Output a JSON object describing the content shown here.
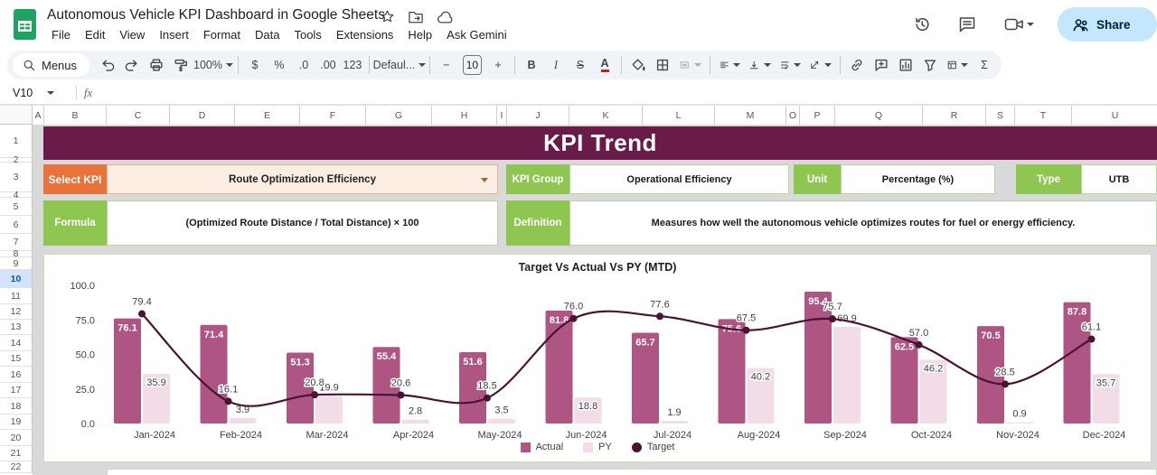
{
  "titlebar": {
    "doc_title": "Autonomous Vehicle KPI Dashboard in Google Sheets",
    "menus": [
      "File",
      "Edit",
      "View",
      "Insert",
      "Format",
      "Data",
      "Tools",
      "Extensions",
      "Help",
      "Ask Gemini"
    ],
    "title_icons": [
      "star-icon",
      "move-folder-icon",
      "cloud-status-icon"
    ],
    "right_icons": [
      "version-history-icon",
      "comments-icon",
      "video-call-icon"
    ],
    "share_label": "Share"
  },
  "toolbar": {
    "items": [
      {
        "name": "menus-search",
        "icon": "search",
        "text": "Menus",
        "pill": true
      },
      {
        "name": "undo",
        "icon": "undo"
      },
      {
        "name": "redo",
        "icon": "redo"
      },
      {
        "name": "print",
        "icon": "print"
      },
      {
        "name": "paint-format",
        "icon": "paint-roller"
      },
      {
        "name": "zoom",
        "text": "100%",
        "caret": true
      },
      {
        "sep": true
      },
      {
        "name": "format-currency",
        "text": "$"
      },
      {
        "name": "format-percent",
        "text": "%"
      },
      {
        "name": "decrease-decimal",
        "text": ".0"
      },
      {
        "name": "increase-decimal",
        "text": ".00"
      },
      {
        "name": "more-formats",
        "text": "123"
      },
      {
        "sep": true
      },
      {
        "name": "font",
        "text": "Defaul...",
        "caret": true
      },
      {
        "sep": true
      },
      {
        "name": "decrease-font-size",
        "text": "−"
      },
      {
        "name": "font-size",
        "text": "10",
        "box": true
      },
      {
        "name": "increase-font-size",
        "text": "+"
      },
      {
        "sep": true
      },
      {
        "name": "bold",
        "text": "B",
        "cls": "b"
      },
      {
        "name": "italic",
        "text": "I",
        "cls": "i"
      },
      {
        "name": "strikethrough",
        "text": "S",
        "cls": "strike"
      },
      {
        "name": "text-color",
        "text": "A",
        "cls": "a-under"
      },
      {
        "sep": true
      },
      {
        "name": "fill-color",
        "icon": "bucket"
      },
      {
        "name": "borders",
        "icon": "borders"
      },
      {
        "name": "merge-cells",
        "icon": "merge",
        "caret": true,
        "disabled": true
      },
      {
        "sep": true
      },
      {
        "name": "horizontal-align",
        "icon": "align-left",
        "caret": true
      },
      {
        "name": "vertical-align",
        "icon": "valign",
        "caret": true
      },
      {
        "name": "text-wrap",
        "icon": "wrap",
        "caret": true
      },
      {
        "name": "text-rotation",
        "icon": "rotate",
        "caret": true
      },
      {
        "sep": true
      },
      {
        "name": "insert-link",
        "icon": "link"
      },
      {
        "name": "insert-comment",
        "icon": "comment-add"
      },
      {
        "name": "insert-chart",
        "icon": "chart"
      },
      {
        "name": "create-filter",
        "icon": "filter"
      },
      {
        "name": "table-views",
        "icon": "table",
        "caret": true
      },
      {
        "name": "functions",
        "text": "Σ"
      }
    ]
  },
  "formula_bar": {
    "cell_ref": "V10",
    "fx_label": "fx"
  },
  "grid": {
    "columns": [
      "A",
      "B",
      "C",
      "D",
      "E",
      "F",
      "G",
      "H",
      "I",
      "J",
      "K",
      "L",
      "M",
      "O",
      "P",
      "Q",
      "R",
      "S",
      "T",
      "U"
    ],
    "rows": [
      "1",
      "2",
      "3",
      "4",
      "5",
      "6",
      "7",
      "8",
      "9",
      "10",
      "11",
      "12",
      "13",
      "14",
      "15",
      "16",
      "17",
      "18",
      "19",
      "20",
      "21",
      "22"
    ],
    "selected_row": "10"
  },
  "dashboard": {
    "banner_title": "KPI Trend",
    "select_kpi_label": "Select KPI",
    "select_kpi_value": "Route Optimization Efficiency",
    "kpi_group_label": "KPI Group",
    "kpi_group_value": "Operational Efficiency",
    "unit_label": "Unit",
    "unit_value": "Percentage (%)",
    "type_label": "Type",
    "type_value": "UTB",
    "formula_label": "Formula",
    "formula_value": "(Optimized Route Distance / Total Distance) × 100",
    "definition_label": "Definition",
    "definition_value": "Measures how well the autonomous vehicle optimizes routes for fuel or energy efficiency."
  },
  "chart_data": {
    "type": "bar",
    "subtype": "grouped-bars-with-line",
    "title": "Target Vs Actual Vs PY (MTD)",
    "categories": [
      "Jan-2024",
      "Feb-2024",
      "Mar-2024",
      "Apr-2024",
      "May-2024",
      "Jun-2024",
      "Jul-2024",
      "Aug-2024",
      "Sep-2024",
      "Oct-2024",
      "Nov-2024",
      "Dec-2024"
    ],
    "series": [
      {
        "name": "Actual",
        "type": "bar",
        "color": "#ae5584",
        "values": [
          76.1,
          71.4,
          51.3,
          55.4,
          51.6,
          81.8,
          65.7,
          75.6,
          95.4,
          62.5,
          70.5,
          87.8
        ]
      },
      {
        "name": "PY",
        "type": "bar",
        "color": "#f2dce8",
        "values": [
          35.9,
          3.9,
          19.9,
          2.8,
          3.5,
          18.8,
          1.9,
          40.2,
          69.9,
          46.2,
          0.9,
          35.7
        ]
      },
      {
        "name": "Target",
        "type": "line",
        "color": "#4a1333",
        "values": [
          79.4,
          16.1,
          20.8,
          20.6,
          18.5,
          76.0,
          77.6,
          67.5,
          75.7,
          57.0,
          28.5,
          61.1
        ]
      }
    ],
    "ylim": [
      0,
      100
    ],
    "ytick_labels": [
      "100.0",
      "75.0",
      "50.0",
      "25.0",
      "0.0"
    ],
    "grid": false,
    "legend_position": "bottom"
  },
  "colors": {
    "banner": "#6a1b4a",
    "orange_label": "#e8743c",
    "green_label": "#8fc652",
    "actual_bar": "#ae5584",
    "py_bar": "#f2dce8",
    "target_line": "#4a1333",
    "share_button": "#c2e7ff",
    "selected_row_highlight": "#d3e3fd",
    "sheet_background": "#d9d9d9"
  }
}
